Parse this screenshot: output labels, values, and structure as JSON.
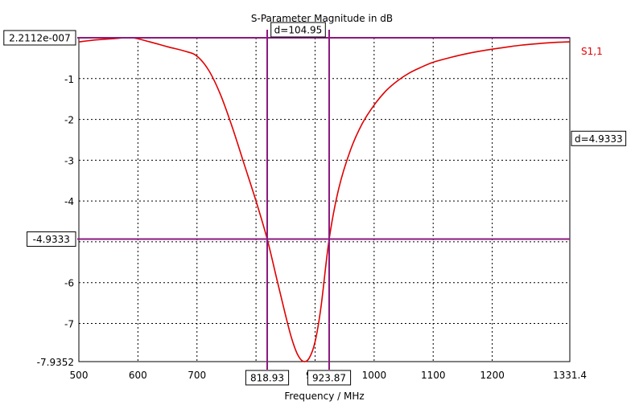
{
  "chart_data": {
    "type": "line",
    "title": "S-Parameter Magnitude in dB",
    "xlabel": "Frequency / MHz",
    "ylabel": "",
    "xlim": [
      500,
      1331.4
    ],
    "ylim": [
      -7.9352,
      2.2112e-07
    ],
    "x_ticks": [
      "500",
      "600",
      "700",
      "800",
      "900",
      "1000",
      "1100",
      "1200",
      "1331.4"
    ],
    "x_tick_values": [
      500,
      600,
      700,
      800,
      900,
      1000,
      1100,
      1200,
      1331.4
    ],
    "y_ticks": [
      "-1",
      "-2",
      "-3",
      "-4",
      "-5",
      "-6",
      "-7"
    ],
    "y_tick_values": [
      -1,
      -2,
      -3,
      -4,
      -5,
      -6,
      -7
    ],
    "y_top_label": "2.2112e-007",
    "y_bottom_label": "-7.9352",
    "grid": true,
    "series": [
      {
        "name": "S1,1",
        "color": "#e00000",
        "x": [
          500,
          530,
          560,
          590,
          620,
          650,
          680,
          700,
          720,
          740,
          760,
          780,
          800,
          818.93,
          835,
          850,
          860,
          870,
          880,
          890,
          900,
          910,
          923.87,
          940,
          960,
          980,
          1000,
          1020,
          1040,
          1060,
          1080,
          1100,
          1130,
          1160,
          1200,
          1250,
          1300,
          1331.4
        ],
        "y": [
          -0.1,
          -0.05,
          -0.02,
          0.0,
          -0.1,
          -0.22,
          -0.33,
          -0.45,
          -0.8,
          -1.4,
          -2.2,
          -3.1,
          -4.0,
          -4.9333,
          -5.9,
          -6.8,
          -7.35,
          -7.75,
          -7.93,
          -7.85,
          -7.45,
          -6.6,
          -4.9333,
          -3.7,
          -2.75,
          -2.1,
          -1.65,
          -1.3,
          -1.05,
          -0.86,
          -0.72,
          -0.6,
          -0.48,
          -0.38,
          -0.28,
          -0.18,
          -0.12,
          -0.1
        ]
      }
    ],
    "markers": {
      "horizontal": [
        {
          "value": 2.2112e-07,
          "label": "2.2112e-007"
        },
        {
          "value": -4.9333,
          "label": "-4.9333"
        }
      ],
      "vertical": [
        {
          "value": 818.93,
          "label": "818.93"
        },
        {
          "value": 923.87,
          "label": "923.87"
        }
      ],
      "dx_label": "d=104.95",
      "dy_label": "d=4.9333",
      "color": "#8b1a7f"
    }
  }
}
